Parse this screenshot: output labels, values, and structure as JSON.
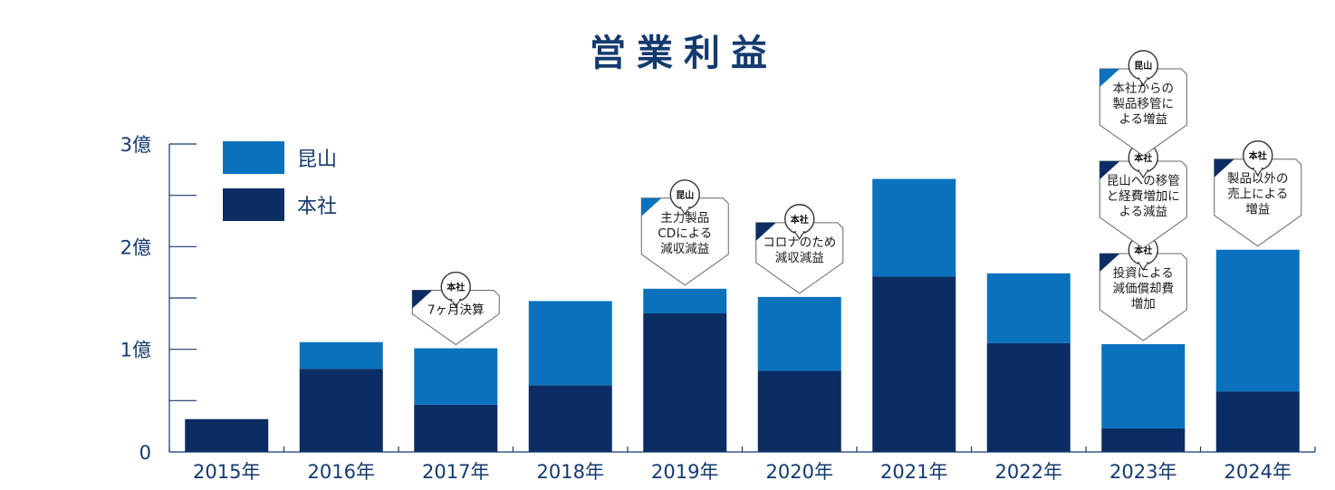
{
  "colors": {
    "honsha": "#0b2d63",
    "kunshan": "#0a72bd",
    "axis": "#143a6e",
    "title": "#143a6e",
    "flag_honsha": "#0b2d63",
    "flag_kunshan": "#0a72bd"
  },
  "chart_data": {
    "type": "bar",
    "stacked": true,
    "title": "営業利益",
    "xlabel": "",
    "ylabel": "",
    "categories": [
      "2015年",
      "2016年",
      "2017年",
      "2018年",
      "2019年",
      "2020年",
      "2021年",
      "2022年",
      "2023年",
      "2024年"
    ],
    "series": [
      {
        "name": "本社",
        "color_key": "honsha",
        "values": [
          0.32,
          0.81,
          0.46,
          0.65,
          1.35,
          0.79,
          1.71,
          1.06,
          0.23,
          0.59
        ]
      },
      {
        "name": "昆山",
        "color_key": "kunshan",
        "values": [
          0.0,
          0.26,
          0.55,
          0.82,
          0.24,
          0.72,
          0.95,
          0.68,
          0.82,
          1.38
        ]
      }
    ],
    "ylim": [
      0,
      3
    ],
    "yticks": [
      {
        "value": 0,
        "label": "0"
      },
      {
        "value": 0.5,
        "label": ""
      },
      {
        "value": 1,
        "label": "1億"
      },
      {
        "value": 1.5,
        "label": ""
      },
      {
        "value": 2,
        "label": "2億"
      },
      {
        "value": 2.5,
        "label": ""
      },
      {
        "value": 3,
        "label": "3億"
      }
    ],
    "legend": {
      "placement": "top-left",
      "items": [
        {
          "label": "昆山",
          "color_key": "kunshan"
        },
        {
          "label": "本社",
          "color_key": "honsha"
        }
      ]
    },
    "annotations": [
      {
        "category_index": 2,
        "badge": "本社",
        "flag_key": "flag_honsha",
        "lines": [
          "7ヶ月決算"
        ]
      },
      {
        "category_index": 4,
        "badge": "昆山",
        "flag_key": "flag_kunshan",
        "lines": [
          "主力製品",
          "CDによる",
          "減収減益"
        ]
      },
      {
        "category_index": 5,
        "badge": "本社",
        "flag_key": "flag_honsha",
        "lines": [
          "コロナのため",
          "減収減益"
        ]
      },
      {
        "category_index": 8,
        "badge": "本社",
        "flag_key": "flag_honsha",
        "lines": [
          "投資による",
          "減価償却費",
          "増加"
        ]
      },
      {
        "category_index": 8,
        "badge": "本社",
        "flag_key": "flag_honsha",
        "lines": [
          "昆山への移管",
          "と経費増加に",
          "よる減益"
        ]
      },
      {
        "category_index": 8,
        "badge": "昆山",
        "flag_key": "flag_kunshan",
        "lines": [
          "本社からの",
          "製品移管に",
          "よる増益"
        ]
      },
      {
        "category_index": 9,
        "badge": "本社",
        "flag_key": "flag_honsha",
        "lines": [
          "製品以外の",
          "売上による",
          "増益"
        ]
      }
    ]
  }
}
